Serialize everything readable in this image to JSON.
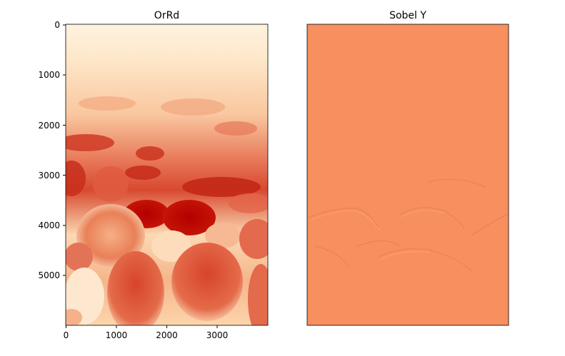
{
  "chart_data": [
    {
      "type": "heatmap",
      "title": "OrRd",
      "colormap": "OrRd",
      "xlim": [
        0,
        4000
      ],
      "ylim": [
        6000,
        0
      ],
      "x_ticks": [
        0,
        1000,
        2000,
        3000
      ],
      "y_ticks": [
        0,
        1000,
        2000,
        3000,
        4000,
        5000
      ],
      "axes_visible": true
    },
    {
      "type": "heatmap",
      "title": "Sobel Y",
      "colormap": "RdBu_r style (uniform orange)",
      "base_color": "#f88f5f",
      "axes_visible": false
    }
  ]
}
